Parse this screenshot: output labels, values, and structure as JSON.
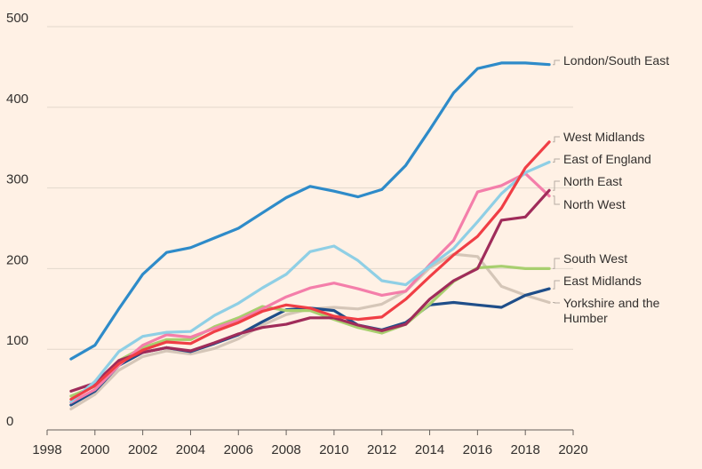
{
  "chart_data": {
    "type": "line",
    "title": "",
    "xlabel": "",
    "ylabel": "",
    "xlim": [
      1998,
      2020
    ],
    "ylim": [
      0,
      500
    ],
    "x_ticks": [
      1998,
      2000,
      2002,
      2004,
      2006,
      2008,
      2010,
      2012,
      2014,
      2016,
      2018,
      2020
    ],
    "y_ticks": [
      0,
      100,
      200,
      300,
      400,
      500
    ],
    "grid": true,
    "legend": "direct labels at line ends",
    "x": [
      1999,
      2000,
      2001,
      2002,
      2003,
      2004,
      2005,
      2006,
      2007,
      2008,
      2009,
      2010,
      2011,
      2012,
      2013,
      2014,
      2015,
      2016,
      2017,
      2018,
      2019
    ],
    "series": [
      {
        "name": "London/South East",
        "color": "#2e8bc9",
        "values": [
          88,
          105,
          150,
          193,
          220,
          226,
          238,
          250,
          269,
          288,
          302,
          296,
          289,
          298,
          328,
          372,
          418,
          448,
          455,
          455,
          453
        ]
      },
      {
        "name": "West Midlands",
        "color": "#f03e45",
        "values": [
          38,
          55,
          82,
          99,
          109,
          107,
          122,
          133,
          147,
          155,
          151,
          141,
          137,
          140,
          162,
          190,
          217,
          240,
          275,
          325,
          357
        ]
      },
      {
        "name": "East of England",
        "color": "#8fcfe5",
        "values": [
          35,
          60,
          97,
          116,
          121,
          122,
          142,
          157,
          176,
          193,
          221,
          228,
          210,
          185,
          180,
          203,
          225,
          258,
          293,
          319,
          332
        ]
      },
      {
        "name": "North East",
        "color": "#a02c5a",
        "values": [
          48,
          58,
          86,
          96,
          102,
          98,
          108,
          119,
          127,
          131,
          139,
          139,
          130,
          123,
          131,
          162,
          185,
          200,
          260,
          264,
          297
        ]
      },
      {
        "name": "North West",
        "color": "#f47eaa",
        "values": [
          34,
          50,
          80,
          105,
          118,
          115,
          126,
          136,
          150,
          165,
          176,
          182,
          175,
          167,
          172,
          205,
          235,
          295,
          303,
          318,
          290
        ]
      },
      {
        "name": "South West",
        "color": "#a8cf6f",
        "values": [
          42,
          54,
          86,
          102,
          112,
          112,
          128,
          139,
          153,
          148,
          148,
          137,
          127,
          120,
          131,
          156,
          184,
          201,
          203,
          200,
          200
        ]
      },
      {
        "name": "East Midlands",
        "color": "#1f4e89",
        "values": [
          31,
          48,
          80,
          96,
          102,
          97,
          107,
          118,
          134,
          149,
          151,
          148,
          130,
          124,
          133,
          155,
          158,
          155,
          152,
          167,
          175
        ]
      },
      {
        "name": "Yorkshire and the Humber",
        "color": "#d5c6b8",
        "values": [
          26,
          44,
          74,
          91,
          98,
          94,
          101,
          113,
          130,
          143,
          150,
          152,
          150,
          156,
          172,
          201,
          218,
          215,
          178,
          167,
          158
        ]
      }
    ]
  }
}
